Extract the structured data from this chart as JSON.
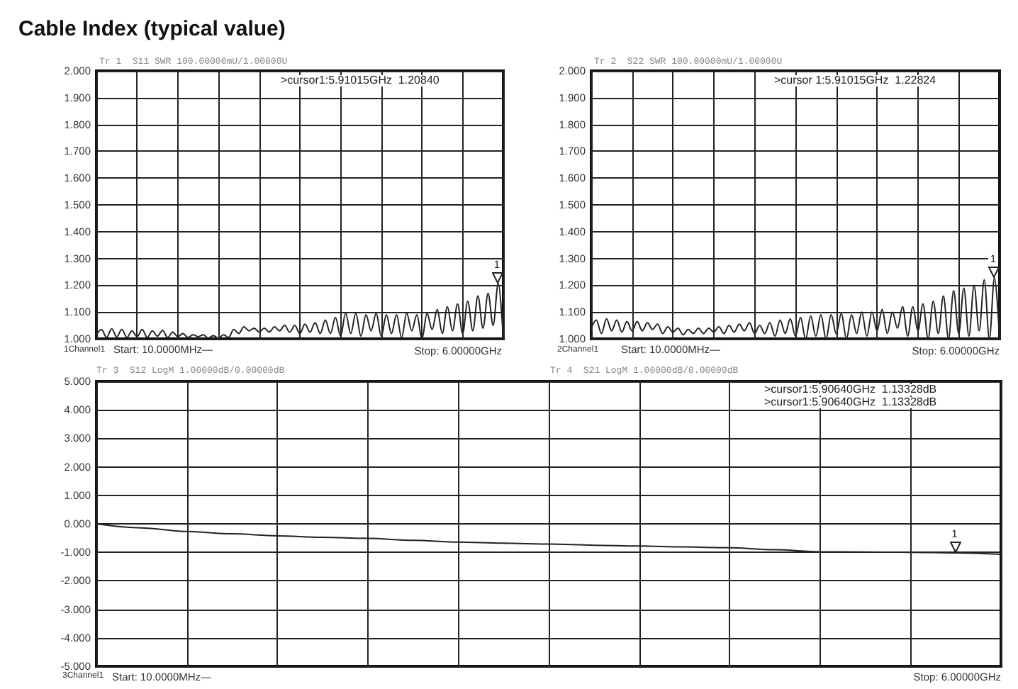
{
  "chart_data": [
    {
      "type": "line",
      "title": "Cable Index (typical value)",
      "annotations": [
        "Tr 1  S11 SWR 100.00000mU/1.00000U",
        ">cursor1:5.91015GHz  1.20840",
        "1Channel1",
        "Start: 10.0000MHz—",
        "Stop: 6.00000GHz",
        {
          "text": "1",
          "y": 1.208
        }
      ],
      "categories": [
        null,
        null,
        null,
        null,
        null,
        null,
        null,
        null,
        null,
        null,
        null,
        null,
        null,
        null,
        null,
        null,
        null,
        null,
        null,
        null,
        null,
        null,
        null,
        null,
        null,
        null,
        null,
        null,
        null,
        null,
        null,
        null,
        null,
        null,
        null,
        null,
        null,
        null,
        null,
        null,
        null,
        null,
        null,
        null,
        null,
        null,
        null,
        null,
        null,
        null,
        null,
        null,
        null,
        null,
        null,
        null,
        null,
        null,
        null,
        null,
        null,
        null,
        null,
        null,
        null,
        null,
        null,
        null,
        null,
        null,
        null,
        null,
        null,
        null,
        null,
        null,
        null,
        null,
        null,
        null,
        null
      ],
      "series": [
        {
          "color": "#222222",
          "values": [
            1.015,
            1.035,
            1.005,
            1.038,
            1.008,
            1.035,
            1.005,
            1.03,
            1.008,
            1.035,
            1.005,
            1.03,
            1.01,
            1.032,
            1.005,
            1.025,
            1.008,
            1.02,
            1.005,
            1.015,
            1.008,
            1.015,
            1.003,
            1.012,
            1.002,
            1.015,
            1.005,
            1.035,
            1.02,
            1.045,
            1.03,
            1.04,
            1.025,
            1.04,
            1.025,
            1.045,
            1.03,
            1.05,
            1.025,
            1.05,
            1.02,
            1.055,
            1.025,
            1.06,
            1.02,
            1.07,
            1.02,
            1.08,
            1.01,
            1.095,
            1.02,
            1.095,
            1.01,
            1.09,
            1.03,
            1.095,
            1.01,
            1.09,
            1.02,
            1.09,
            1.005,
            1.095,
            1.03,
            1.09,
            1.0,
            1.095,
            1.035,
            1.11,
            1.02,
            1.12,
            1.03,
            1.13,
            1.02,
            1.14,
            1.03,
            1.16,
            1.04,
            1.17,
            1.05,
            1.208,
            1.0
          ]
        }
      ],
      "ylim": [
        1,
        2
      ],
      "yticks": [
        {
          "value": 1,
          "label": "1.000"
        },
        {
          "value": 1.1,
          "label": "1.100"
        },
        {
          "value": 1.2,
          "label": "1.200"
        },
        {
          "value": 1.3,
          "label": "1.300"
        },
        {
          "value": 1.4,
          "label": "1.400"
        },
        {
          "value": 1.5,
          "label": "1.500"
        },
        {
          "value": 1.6,
          "label": "1.600"
        },
        {
          "value": 1.7,
          "label": "1.700"
        },
        {
          "value": 1.8,
          "label": "1.800"
        },
        {
          "value": 1.9,
          "label": "1.900"
        },
        {
          "value": 2,
          "label": "2.000"
        }
      ],
      "grid": true,
      "tick_labels": "y"
    },
    {
      "type": "line",
      "annotations": [
        "Tr 2  S22 SWR 100.00000mU/1.00000U",
        ">cursor 1:5.91015GHz  1.22824",
        "2Channel1",
        "Start: 10.0000MHz—",
        "Stop: 6.00000GHz",
        {
          "text": "1",
          "y": 1.228
        }
      ],
      "categories": [
        null,
        null,
        null,
        null,
        null,
        null,
        null,
        null,
        null,
        null,
        null,
        null,
        null,
        null,
        null,
        null,
        null,
        null,
        null,
        null,
        null,
        null,
        null,
        null,
        null,
        null,
        null,
        null,
        null,
        null,
        null,
        null,
        null,
        null,
        null,
        null,
        null,
        null,
        null,
        null,
        null,
        null,
        null,
        null,
        null,
        null,
        null,
        null,
        null,
        null,
        null,
        null,
        null,
        null,
        null,
        null,
        null,
        null,
        null,
        null,
        null,
        null,
        null,
        null,
        null,
        null,
        null,
        null,
        null,
        null,
        null,
        null,
        null,
        null,
        null,
        null,
        null,
        null,
        null,
        null,
        null
      ],
      "series": [
        {
          "color": "#222222",
          "values": [
            1.04,
            1.07,
            1.02,
            1.075,
            1.03,
            1.07,
            1.025,
            1.065,
            1.03,
            1.065,
            1.03,
            1.06,
            1.035,
            1.055,
            1.02,
            1.045,
            1.025,
            1.04,
            1.015,
            1.035,
            1.02,
            1.04,
            1.02,
            1.04,
            1.025,
            1.045,
            1.02,
            1.05,
            1.025,
            1.055,
            1.03,
            1.06,
            1.02,
            1.05,
            1.02,
            1.06,
            1.01,
            1.07,
            1.02,
            1.075,
            1.01,
            1.08,
            1.0,
            1.085,
            1.01,
            1.09,
            1.0,
            1.09,
            1.02,
            1.095,
            1.0,
            1.09,
            1.02,
            1.1,
            1.01,
            1.1,
            1.03,
            1.11,
            1.02,
            1.1,
            1.04,
            1.12,
            1.01,
            1.12,
            1.03,
            1.13,
            1.0,
            1.14,
            1.02,
            1.16,
            1.0,
            1.18,
            1.02,
            1.19,
            1.01,
            1.2,
            1.03,
            1.22,
            1.0,
            1.228,
            1.0
          ]
        }
      ],
      "ylim": [
        1,
        2
      ],
      "yticks": [
        {
          "value": 1,
          "label": "1.000"
        },
        {
          "value": 1.1,
          "label": "1.100"
        },
        {
          "value": 1.2,
          "label": "1.200"
        },
        {
          "value": 1.3,
          "label": "1.300"
        },
        {
          "value": 1.4,
          "label": "1.400"
        },
        {
          "value": 1.5,
          "label": "1.500"
        },
        {
          "value": 1.6,
          "label": "1.600"
        },
        {
          "value": 1.7,
          "label": "1.700"
        },
        {
          "value": 1.8,
          "label": "1.800"
        },
        {
          "value": 1.9,
          "label": "1.900"
        },
        {
          "value": 2,
          "label": "2.000"
        }
      ],
      "grid": true,
      "tick_labels": "y"
    },
    {
      "type": "line",
      "annotations": [
        "Tr 3  S12 LogM 1.00000dB/0.00000dB",
        "Tr 4  S21 LogM 1.00000dB/0.00000dB",
        ">cursor1:5.90640GHz  1.13328dB",
        ">cursor1:5.90640GHz  1.13328dB",
        "3Channel1",
        "Start: 10.0000MHz—",
        "Stop: 6.00000GHz",
        {
          "text": "1",
          "y": -1.02
        }
      ],
      "categories": [
        null,
        null,
        null,
        null,
        null,
        null,
        null,
        null,
        null,
        null,
        null,
        null,
        null,
        null,
        null,
        null,
        null,
        null,
        null,
        null,
        null
      ],
      "series": [
        {
          "color": "#222222",
          "values": [
            0.0,
            -0.14,
            -0.27,
            -0.35,
            -0.42,
            -0.47,
            -0.51,
            -0.58,
            -0.64,
            -0.68,
            -0.71,
            -0.75,
            -0.78,
            -0.81,
            -0.84,
            -0.91,
            -0.98,
            -0.99,
            -1.0,
            -1.02,
            -1.07
          ]
        }
      ],
      "ylim": [
        -5,
        5
      ],
      "yticks": [
        {
          "value": -5,
          "label": "-5.000"
        },
        {
          "value": -4,
          "label": "-4.000"
        },
        {
          "value": -3,
          "label": "-3.000"
        },
        {
          "value": -2,
          "label": "-2.000"
        },
        {
          "value": -1,
          "label": "-1.000"
        },
        {
          "value": 0,
          "label": "0.000"
        },
        {
          "value": 1,
          "label": "1.000"
        },
        {
          "value": 2,
          "label": "2.000"
        },
        {
          "value": 3,
          "label": "3.000"
        },
        {
          "value": 4,
          "label": "4.000"
        },
        {
          "value": 5,
          "label": "5.000"
        }
      ],
      "grid": true,
      "tick_labels": "y"
    }
  ]
}
